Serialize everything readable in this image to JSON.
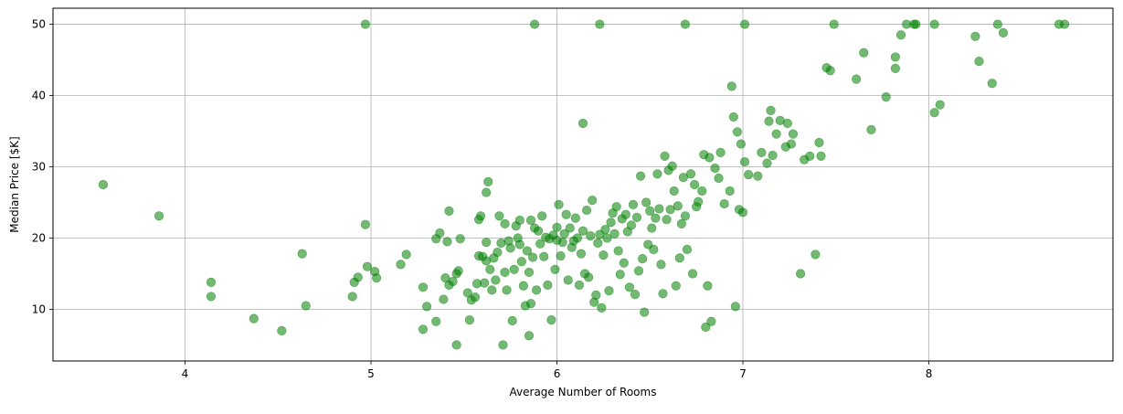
{
  "chart_data": {
    "type": "scatter",
    "title": "",
    "xlabel": "Average Number of Rooms",
    "ylabel": "Median Price [$K]",
    "xlim": [
      3.29,
      8.99
    ],
    "ylim": [
      2.75,
      52.25
    ],
    "xticks": [
      4,
      5,
      6,
      7,
      8
    ],
    "yticks": [
      10,
      20,
      30,
      40,
      50
    ],
    "grid": true,
    "point_color": "#008000",
    "point_alpha": 0.55,
    "points": [
      [
        3.56,
        27.5
      ],
      [
        3.86,
        23.1
      ],
      [
        4.14,
        13.8
      ],
      [
        4.14,
        11.8
      ],
      [
        4.37,
        8.7
      ],
      [
        4.52,
        7.0
      ],
      [
        4.63,
        17.8
      ],
      [
        4.65,
        10.5
      ],
      [
        4.9,
        11.8
      ],
      [
        4.91,
        13.8
      ],
      [
        4.93,
        14.5
      ],
      [
        4.97,
        21.9
      ],
      [
        4.98,
        16.0
      ],
      [
        4.97,
        50.0
      ],
      [
        5.02,
        15.3
      ],
      [
        5.03,
        14.4
      ],
      [
        5.16,
        16.3
      ],
      [
        5.19,
        17.7
      ],
      [
        5.28,
        13.1
      ],
      [
        5.28,
        7.2
      ],
      [
        5.3,
        10.4
      ],
      [
        5.35,
        8.3
      ],
      [
        5.35,
        19.9
      ],
      [
        5.37,
        20.7
      ],
      [
        5.39,
        11.4
      ],
      [
        5.4,
        14.4
      ],
      [
        5.41,
        19.5
      ],
      [
        5.42,
        23.8
      ],
      [
        5.42,
        13.4
      ],
      [
        5.44,
        13.9
      ],
      [
        5.46,
        15.0
      ],
      [
        5.46,
        5.0
      ],
      [
        5.47,
        15.4
      ],
      [
        5.48,
        19.9
      ],
      [
        5.52,
        12.3
      ],
      [
        5.53,
        8.5
      ],
      [
        5.54,
        11.3
      ],
      [
        5.56,
        11.7
      ],
      [
        5.57,
        13.6
      ],
      [
        5.58,
        17.5
      ],
      [
        5.58,
        22.6
      ],
      [
        5.59,
        23.1
      ],
      [
        5.6,
        17.4
      ],
      [
        5.61,
        13.7
      ],
      [
        5.62,
        16.8
      ],
      [
        5.62,
        19.4
      ],
      [
        5.62,
        26.4
      ],
      [
        5.63,
        27.9
      ],
      [
        5.64,
        15.6
      ],
      [
        5.65,
        12.7
      ],
      [
        5.66,
        17.2
      ],
      [
        5.67,
        14.1
      ],
      [
        5.68,
        18.0
      ],
      [
        5.69,
        23.1
      ],
      [
        5.7,
        19.3
      ],
      [
        5.71,
        5.0
      ],
      [
        5.72,
        15.2
      ],
      [
        5.72,
        22.0
      ],
      [
        5.73,
        12.7
      ],
      [
        5.74,
        19.6
      ],
      [
        5.75,
        18.6
      ],
      [
        5.76,
        8.4
      ],
      [
        5.77,
        15.6
      ],
      [
        5.78,
        21.7
      ],
      [
        5.79,
        20.0
      ],
      [
        5.8,
        22.5
      ],
      [
        5.8,
        19.1
      ],
      [
        5.81,
        16.7
      ],
      [
        5.82,
        13.3
      ],
      [
        5.83,
        10.5
      ],
      [
        5.84,
        18.2
      ],
      [
        5.85,
        15.2
      ],
      [
        5.85,
        6.3
      ],
      [
        5.86,
        10.8
      ],
      [
        5.86,
        22.5
      ],
      [
        5.87,
        17.3
      ],
      [
        5.88,
        21.4
      ],
      [
        5.88,
        50.0
      ],
      [
        5.89,
        12.7
      ],
      [
        5.9,
        21.0
      ],
      [
        5.91,
        19.2
      ],
      [
        5.92,
        23.1
      ],
      [
        5.93,
        17.4
      ],
      [
        5.94,
        20.1
      ],
      [
        5.95,
        13.4
      ],
      [
        5.96,
        19.9
      ],
      [
        5.97,
        8.5
      ],
      [
        5.98,
        20.4
      ],
      [
        5.99,
        15.6
      ],
      [
        6.0,
        21.5
      ],
      [
        6.0,
        19.7
      ],
      [
        6.01,
        24.7
      ],
      [
        6.02,
        17.5
      ],
      [
        6.03,
        19.4
      ],
      [
        6.04,
        20.6
      ],
      [
        6.05,
        23.3
      ],
      [
        6.06,
        14.1
      ],
      [
        6.07,
        21.4
      ],
      [
        6.08,
        18.7
      ],
      [
        6.09,
        19.6
      ],
      [
        6.1,
        22.8
      ],
      [
        6.11,
        20.0
      ],
      [
        6.12,
        13.4
      ],
      [
        6.13,
        17.8
      ],
      [
        6.14,
        21.0
      ],
      [
        6.14,
        36.1
      ],
      [
        6.15,
        15.0
      ],
      [
        6.16,
        23.9
      ],
      [
        6.17,
        14.5
      ],
      [
        6.18,
        20.3
      ],
      [
        6.19,
        25.3
      ],
      [
        6.2,
        11.0
      ],
      [
        6.21,
        12.0
      ],
      [
        6.22,
        19.3
      ],
      [
        6.23,
        20.5
      ],
      [
        6.23,
        50.0
      ],
      [
        6.24,
        10.2
      ],
      [
        6.25,
        17.6
      ],
      [
        6.26,
        21.2
      ],
      [
        6.27,
        20.0
      ],
      [
        6.28,
        12.6
      ],
      [
        6.29,
        22.2
      ],
      [
        6.3,
        23.5
      ],
      [
        6.31,
        20.6
      ],
      [
        6.32,
        24.4
      ],
      [
        6.33,
        18.2
      ],
      [
        6.34,
        14.9
      ],
      [
        6.35,
        22.7
      ],
      [
        6.36,
        16.5
      ],
      [
        6.37,
        23.3
      ],
      [
        6.38,
        20.9
      ],
      [
        6.39,
        13.1
      ],
      [
        6.4,
        21.8
      ],
      [
        6.41,
        24.7
      ],
      [
        6.42,
        12.1
      ],
      [
        6.43,
        22.9
      ],
      [
        6.44,
        15.4
      ],
      [
        6.45,
        28.7
      ],
      [
        6.46,
        17.1
      ],
      [
        6.47,
        9.6
      ],
      [
        6.48,
        25.0
      ],
      [
        6.49,
        19.1
      ],
      [
        6.5,
        23.8
      ],
      [
        6.51,
        21.4
      ],
      [
        6.52,
        18.4
      ],
      [
        6.53,
        22.8
      ],
      [
        6.54,
        29.0
      ],
      [
        6.55,
        24.1
      ],
      [
        6.56,
        16.3
      ],
      [
        6.57,
        12.2
      ],
      [
        6.58,
        31.5
      ],
      [
        6.59,
        22.6
      ],
      [
        6.6,
        29.5
      ],
      [
        6.61,
        24.0
      ],
      [
        6.62,
        30.1
      ],
      [
        6.63,
        26.6
      ],
      [
        6.64,
        13.3
      ],
      [
        6.65,
        24.5
      ],
      [
        6.66,
        17.2
      ],
      [
        6.67,
        22.0
      ],
      [
        6.68,
        28.5
      ],
      [
        6.69,
        23.1
      ],
      [
        6.69,
        50.0
      ],
      [
        6.7,
        18.4
      ],
      [
        6.72,
        29.0
      ],
      [
        6.73,
        15.0
      ],
      [
        6.74,
        27.5
      ],
      [
        6.75,
        24.4
      ],
      [
        6.76,
        25.1
      ],
      [
        6.78,
        26.6
      ],
      [
        6.79,
        31.7
      ],
      [
        6.8,
        7.5
      ],
      [
        6.81,
        13.3
      ],
      [
        6.82,
        31.3
      ],
      [
        6.83,
        8.3
      ],
      [
        6.85,
        29.8
      ],
      [
        6.87,
        28.4
      ],
      [
        6.88,
        32.0
      ],
      [
        6.9,
        24.8
      ],
      [
        6.93,
        26.6
      ],
      [
        6.94,
        41.3
      ],
      [
        6.95,
        37.0
      ],
      [
        6.96,
        10.4
      ],
      [
        6.97,
        34.9
      ],
      [
        6.98,
        24.0
      ],
      [
        6.99,
        33.2
      ],
      [
        7.0,
        23.6
      ],
      [
        7.01,
        30.7
      ],
      [
        7.01,
        50.0
      ],
      [
        7.03,
        28.9
      ],
      [
        7.08,
        28.7
      ],
      [
        7.1,
        32.0
      ],
      [
        7.13,
        30.5
      ],
      [
        7.14,
        36.4
      ],
      [
        7.15,
        37.9
      ],
      [
        7.16,
        31.6
      ],
      [
        7.18,
        34.6
      ],
      [
        7.2,
        36.5
      ],
      [
        7.23,
        32.8
      ],
      [
        7.24,
        36.1
      ],
      [
        7.26,
        33.2
      ],
      [
        7.27,
        34.6
      ],
      [
        7.31,
        15.0
      ],
      [
        7.33,
        31.0
      ],
      [
        7.36,
        31.5
      ],
      [
        7.39,
        17.7
      ],
      [
        7.41,
        33.4
      ],
      [
        7.42,
        31.5
      ],
      [
        7.45,
        43.9
      ],
      [
        7.47,
        43.5
      ],
      [
        7.49,
        50.0
      ],
      [
        7.61,
        42.3
      ],
      [
        7.65,
        46.0
      ],
      [
        7.69,
        35.2
      ],
      [
        7.77,
        39.8
      ],
      [
        7.82,
        45.4
      ],
      [
        7.82,
        43.8
      ],
      [
        7.85,
        48.5
      ],
      [
        7.88,
        50.0
      ],
      [
        7.92,
        50.0
      ],
      [
        7.93,
        50.0
      ],
      [
        8.03,
        50.0
      ],
      [
        8.03,
        37.6
      ],
      [
        8.06,
        38.7
      ],
      [
        8.25,
        48.3
      ],
      [
        8.27,
        44.8
      ],
      [
        8.34,
        41.7
      ],
      [
        8.37,
        50.0
      ],
      [
        8.4,
        48.8
      ],
      [
        8.7,
        50.0
      ],
      [
        8.73,
        50.0
      ]
    ]
  }
}
